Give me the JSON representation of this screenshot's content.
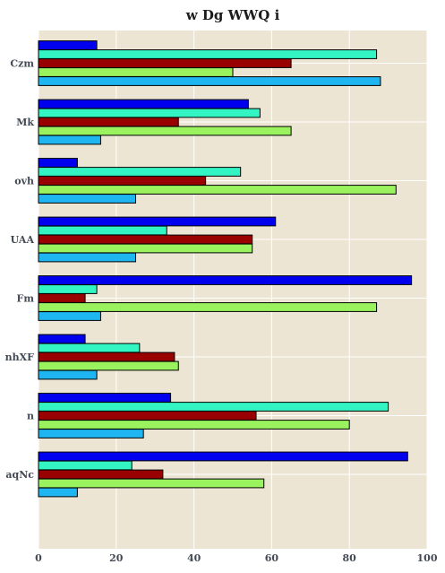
{
  "chart_data": {
    "type": "bar",
    "orientation": "horizontal",
    "title": "w Dg WWQ i",
    "xlabel": "",
    "ylabel": "",
    "xlim": [
      0,
      100
    ],
    "xticks": [
      0,
      20,
      40,
      60,
      80,
      100
    ],
    "grid": true,
    "legend": "none",
    "background": "#ede5d4",
    "categories": [
      "Czm",
      "Mk",
      "ovh",
      "UAA",
      "Fm",
      "nhXF",
      "n",
      "aqNc"
    ],
    "series": [
      {
        "color": "#0000ee",
        "values": [
          15,
          54,
          10,
          61,
          96,
          12,
          34,
          95
        ]
      },
      {
        "color": "#33f5c4",
        "values": [
          87,
          57,
          52,
          33,
          15,
          26,
          90,
          24
        ]
      },
      {
        "color": "#990000",
        "values": [
          65,
          36,
          43,
          55,
          12,
          35,
          56,
          32
        ]
      },
      {
        "color": "#99f25e",
        "values": [
          50,
          65,
          92,
          55,
          87,
          36,
          80,
          58
        ]
      },
      {
        "color": "#1eb5f0",
        "values": [
          88,
          16,
          25,
          25,
          16,
          15,
          27,
          10
        ]
      }
    ]
  }
}
